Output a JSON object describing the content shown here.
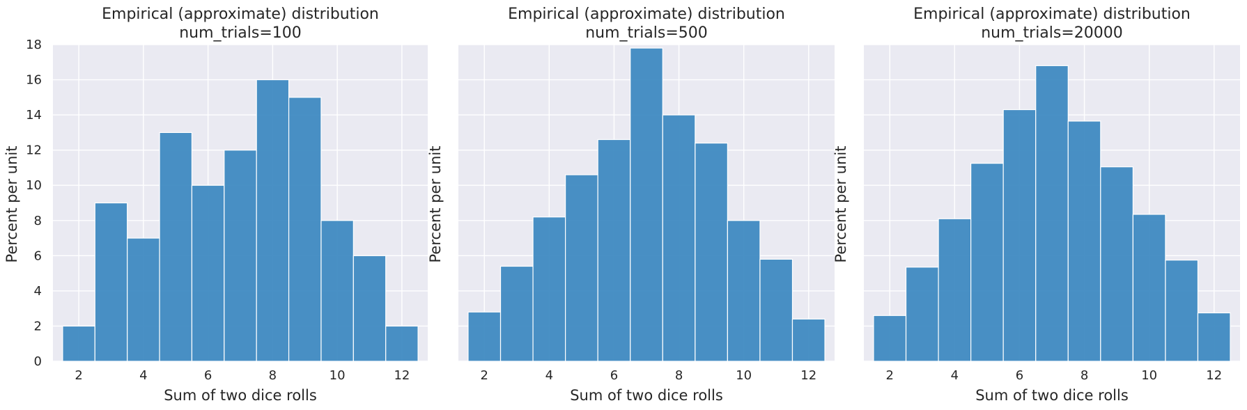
{
  "chart_data": [
    {
      "type": "bar",
      "title_line1": "Empirical (approximate) distribution",
      "title_line2": "num_trials=100",
      "xlabel": "Sum of two dice rolls",
      "ylabel": "Percent per unit",
      "x": [
        2,
        3,
        4,
        5,
        6,
        7,
        8,
        9,
        10,
        11,
        12
      ],
      "values": [
        2,
        9,
        7,
        13,
        10,
        12,
        16,
        15,
        8,
        6,
        2
      ],
      "xticks": [
        2,
        4,
        6,
        8,
        10,
        12
      ],
      "yticks": [
        0,
        2,
        4,
        6,
        8,
        10,
        12,
        14,
        16,
        18
      ],
      "show_yticklabels": true,
      "xlim": [
        1.2,
        12.8
      ],
      "ylim": [
        0,
        18
      ],
      "grid": true
    },
    {
      "type": "bar",
      "title_line1": "Empirical (approximate) distribution",
      "title_line2": "num_trials=500",
      "xlabel": "Sum of two dice rolls",
      "ylabel": "Percent per unit",
      "x": [
        2,
        3,
        4,
        5,
        6,
        7,
        8,
        9,
        10,
        11,
        12
      ],
      "values": [
        2.8,
        5.4,
        8.2,
        10.6,
        12.6,
        17.8,
        14.0,
        12.4,
        8.0,
        5.8,
        2.4
      ],
      "xticks": [
        2,
        4,
        6,
        8,
        10,
        12
      ],
      "yticks": [
        0,
        2,
        4,
        6,
        8,
        10,
        12,
        14,
        16,
        18
      ],
      "show_yticklabels": false,
      "xlim": [
        1.2,
        12.8
      ],
      "ylim": [
        0,
        18
      ],
      "grid": true
    },
    {
      "type": "bar",
      "title_line1": "Empirical (approximate) distribution",
      "title_line2": "num_trials=20000",
      "xlabel": "Sum of two dice rolls",
      "ylabel": "Percent per unit",
      "x": [
        2,
        3,
        4,
        5,
        6,
        7,
        8,
        9,
        10,
        11,
        12
      ],
      "values": [
        2.6,
        5.35,
        8.1,
        11.25,
        14.3,
        16.8,
        13.65,
        11.05,
        8.35,
        5.75,
        2.75
      ],
      "xticks": [
        2,
        4,
        6,
        8,
        10,
        12
      ],
      "yticks": [
        0,
        2,
        4,
        6,
        8,
        10,
        12,
        14,
        16,
        18
      ],
      "show_yticklabels": false,
      "xlim": [
        1.2,
        12.8
      ],
      "ylim": [
        0,
        18
      ],
      "grid": true
    }
  ],
  "colors": {
    "bar": "#3a87c0",
    "plot_background": "#eaeaf2",
    "grid": "#ffffff",
    "text": "#262626"
  }
}
